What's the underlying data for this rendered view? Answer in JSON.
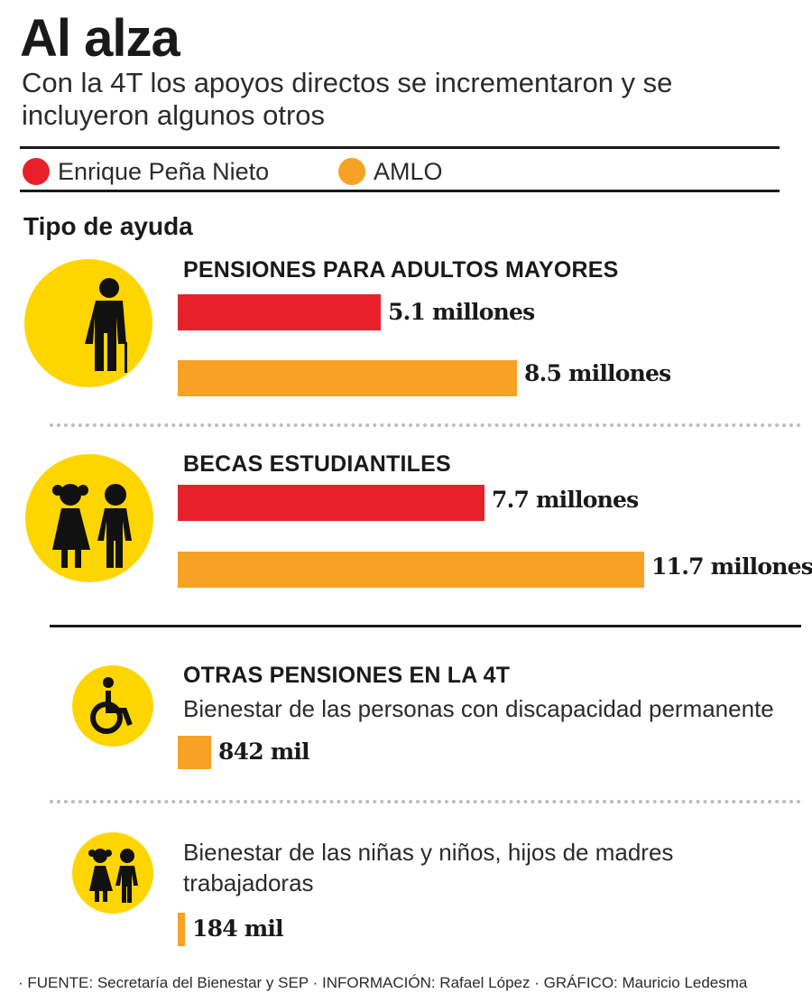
{
  "title": "Al alza",
  "subtitle": "Con la 4T los apoyos directos se incrementaron y se incluyeron algunos otros",
  "legend": [
    {
      "label": "Enrique Peña Nieto",
      "color": "#e8202a"
    },
    {
      "label": "AMLO",
      "color": "#f7a125"
    }
  ],
  "section_label": "Tipo de ayuda",
  "icons": [
    "elderly-person-icon",
    "children-icon",
    "wheelchair-icon",
    "children-small-icon"
  ],
  "chart_data": {
    "type": "bar",
    "orientation": "horizontal",
    "unit": "millones",
    "categories": [
      "PENSIONES PARA ADULTOS MAYORES",
      "BECAS ESTUDIANTILES"
    ],
    "series": [
      {
        "name": "Enrique Peña Nieto",
        "color": "#e8202a",
        "values": [
          5.1,
          7.7
        ],
        "labels": [
          "5.1 millones",
          "7.7 millones"
        ]
      },
      {
        "name": "AMLO",
        "color": "#f7a125",
        "values": [
          8.5,
          11.7
        ],
        "labels": [
          "8.5 millones",
          "11.7 millones"
        ]
      }
    ],
    "other_heading": "OTRAS PENSIONES EN LA 4T",
    "other": [
      {
        "description": "Bienestar de las personas con discapacidad permanente",
        "value": 0.842,
        "label": "842 mil",
        "series": "AMLO"
      },
      {
        "description": "Bienestar de las niñas y niños, hijos de madres trabajadoras",
        "value": 0.184,
        "label": "184 mil",
        "series": "AMLO"
      }
    ]
  },
  "footer": "· FUENTE: Secretaría del Bienestar y SEP · INFORMACIÓN: Rafael López · GRÁFICO: Mauricio Ledesma"
}
